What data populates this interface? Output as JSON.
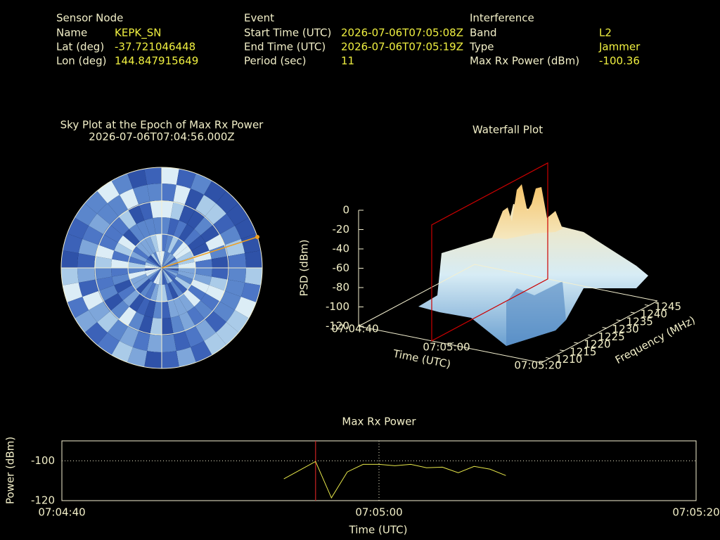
{
  "info": [
    {
      "title": "Sensor Node",
      "fields": [
        {
          "label": "Name",
          "value": "KEPK_SN"
        },
        {
          "label": "Lat (deg)",
          "value": -37.721046448
        },
        {
          "label": "Lon (deg)",
          "value": 144.847915649
        }
      ]
    },
    {
      "title": "Event",
      "fields": [
        {
          "label": "Start Time (UTC)",
          "value": "2026-07-06T07:05:08Z"
        },
        {
          "label": "End Time (UTC)",
          "value": "2026-07-06T07:05:19Z"
        },
        {
          "label": "Period (sec)",
          "value": 11
        }
      ]
    },
    {
      "title": "Interference",
      "fields": [
        {
          "label": "Band",
          "value": "L2"
        },
        {
          "label": "Type",
          "value": "Jammer"
        },
        {
          "label": "Max Rx Power (dBm)",
          "value": -100.36
        }
      ]
    }
  ],
  "chart_data": [
    {
      "type": "skyplot",
      "title": "Sky Plot at the Epoch of Max Rx Power",
      "subtitle": "2026-07-06T07:04:56.000Z"
    },
    {
      "type": "surface3d",
      "title": "Waterfall Plot",
      "xlabel": "Time (UTC)",
      "ylabel": "Frequency (MHz)",
      "zlabel": "PSD (dBm)",
      "xlim": [
        "07:04:40",
        "07:05:20"
      ],
      "xticks": [
        "07:04:40",
        "07:05:00",
        "07:05:20"
      ],
      "ylim": [
        1207,
        1248
      ],
      "yticks": [
        1210,
        1215,
        1220,
        1225,
        1230,
        1235,
        1240,
        1245
      ],
      "zlim": [
        -120,
        0
      ],
      "zticks": [
        0,
        -20,
        -40,
        -60,
        -80,
        -100,
        -120
      ],
      "marker_x": "07:04:56",
      "marker_color": "#cc0000"
    },
    {
      "type": "line",
      "title": "Max Rx Power",
      "xlabel": "Time (UTC)",
      "ylabel": "Power (dBm)",
      "color": "#e8e84a",
      "x": [
        "07:04:54",
        "07:04:56",
        "07:04:57",
        "07:04:58",
        "07:04:59",
        "07:05:00",
        "07:05:01",
        "07:05:02",
        "07:05:03",
        "07:05:04",
        "07:05:05",
        "07:05:06",
        "07:05:07",
        "07:05:08"
      ],
      "values": [
        -109.1,
        -100.36,
        -118.6,
        -105.6,
        -101.8,
        -101.8,
        -102.5,
        -101.8,
        -103.5,
        -103.2,
        -106.0,
        -102.8,
        -104.2,
        -107.4
      ],
      "xlim": [
        "07:04:40",
        "07:05:20"
      ],
      "xticks": [
        "07:04:40",
        "07:05:00",
        "07:05:20"
      ],
      "ylim": [
        -120,
        -90
      ],
      "yticks": [
        -100,
        -120
      ],
      "grid": true,
      "marker_x": "07:04:56",
      "marker_color": "#cc2222"
    }
  ]
}
